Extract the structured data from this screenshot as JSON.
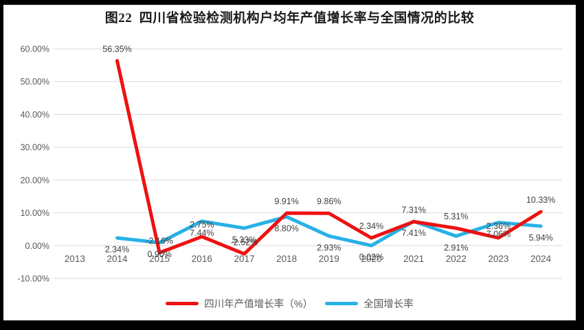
{
  "window": {
    "frame_border_color": "#000000",
    "background_color": "#ffffff"
  },
  "colors": {
    "sichuan_line": "#ee1111",
    "national_line": "#27b1e6",
    "gridline": "#d9d9d9",
    "axis_text": "#595959",
    "data_label_text": "#404040",
    "title_text": "#1a1a1a"
  },
  "chart_data": {
    "type": "line",
    "title": "图22  四川省检验检测机构户均年产值增长率与全国情况的比较",
    "categories": [
      "2013",
      "2014",
      "2015",
      "2016",
      "2017",
      "2018",
      "2019",
      "2020",
      "2021",
      "2022",
      "2023",
      "2024"
    ],
    "series": [
      {
        "name": "四川年产值增长率（%）",
        "color": "#ee1111",
        "label_position": "above",
        "values": [
          null,
          56.35,
          -2.16,
          2.75,
          -2.52,
          9.91,
          9.86,
          2.34,
          7.31,
          5.31,
          2.36,
          10.33
        ]
      },
      {
        "name": "全国增长率",
        "color": "#27b1e6",
        "label_position": "below",
        "values": [
          null,
          2.34,
          0.9,
          7.44,
          5.33,
          8.8,
          2.93,
          0.02,
          7.41,
          2.91,
          7.06,
          5.94
        ]
      }
    ],
    "ylim": [
      -10,
      60
    ],
    "ytick_step": 10,
    "ytick_labels": [
      "60.00%",
      "50.00%",
      "40.00%",
      "30.00%",
      "20.00%",
      "10.00%",
      "0.00%",
      "-10.00%"
    ],
    "value_suffix": "%",
    "value_decimals": 2,
    "grid": true,
    "legend_position": "bottom",
    "data_labels_shown": true
  }
}
